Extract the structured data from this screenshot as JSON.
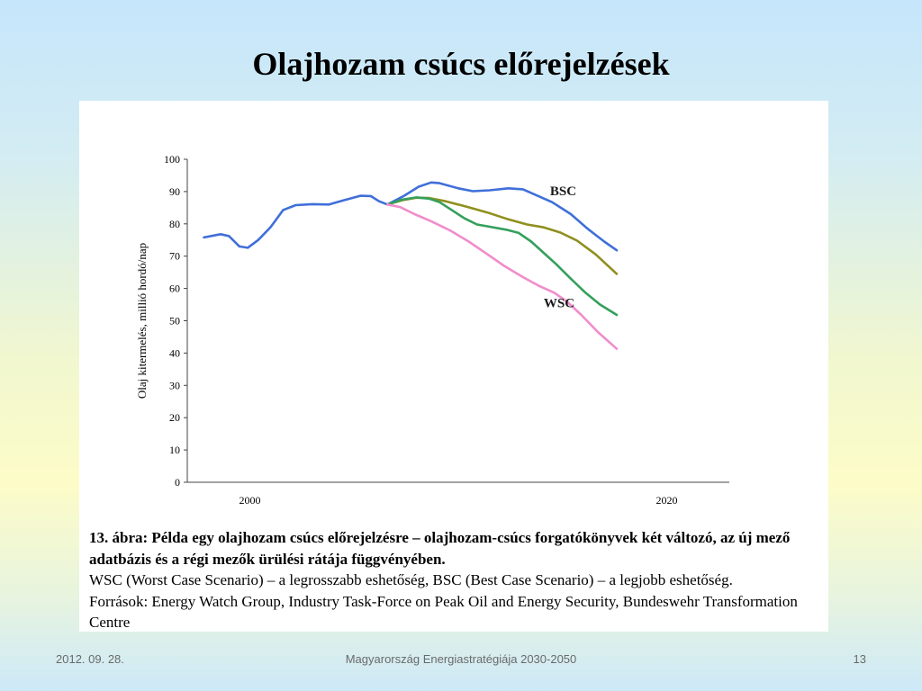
{
  "slide": {
    "title": "Olajhozam csúcs előrejelzések"
  },
  "chart_data": {
    "type": "line",
    "ylabel": "Olaj kitermelés, millió hordó/nap",
    "xlabel": "",
    "ylim": [
      0,
      100
    ],
    "xlim": [
      1997,
      2023
    ],
    "y_ticks": [
      "0",
      "10",
      "20",
      "30",
      "40",
      "50",
      "60",
      "70",
      "80",
      "90",
      "100"
    ],
    "x_ticks": [
      {
        "x": 2000,
        "label": "2000"
      },
      {
        "x": 2020,
        "label": "2020"
      }
    ],
    "grid": false,
    "series": [
      {
        "color": "#3f6fd9",
        "points": [
          [
            1997.8,
            75.8
          ],
          [
            1998.6,
            76.8
          ],
          [
            1999.0,
            76.2
          ],
          [
            1999.5,
            73.0
          ],
          [
            1999.9,
            72.6
          ],
          [
            2000.4,
            75.0
          ],
          [
            2001.0,
            79.0
          ],
          [
            2001.6,
            84.3
          ],
          [
            2002.2,
            85.8
          ],
          [
            2003.0,
            86.1
          ],
          [
            2003.8,
            86.0
          ],
          [
            2004.5,
            87.3
          ],
          [
            2005.3,
            88.7
          ],
          [
            2005.8,
            88.6
          ],
          [
            2006.2,
            87.0
          ],
          [
            2006.6,
            86.0
          ],
          [
            2007.4,
            88.7
          ],
          [
            2008.1,
            91.5
          ],
          [
            2008.7,
            92.8
          ],
          [
            2009.1,
            92.6
          ],
          [
            2010.0,
            91.0
          ],
          [
            2010.7,
            90.1
          ],
          [
            2011.5,
            90.4
          ],
          [
            2012.4,
            91.0
          ],
          [
            2013.1,
            90.7
          ],
          [
            2013.8,
            88.7
          ],
          [
            2014.5,
            86.7
          ],
          [
            2015.4,
            83.0
          ],
          [
            2016.2,
            78.5
          ],
          [
            2017.0,
            74.5
          ],
          [
            2017.6,
            71.8
          ]
        ]
      },
      {
        "color": "#8f8f1e",
        "points": [
          [
            2006.6,
            86.0
          ],
          [
            2007.3,
            87.3
          ],
          [
            2008.0,
            88.1
          ],
          [
            2008.6,
            88.0
          ],
          [
            2009.4,
            87.0
          ],
          [
            2010.4,
            85.3
          ],
          [
            2011.4,
            83.5
          ],
          [
            2012.4,
            81.4
          ],
          [
            2013.3,
            79.8
          ],
          [
            2014.1,
            78.9
          ],
          [
            2014.9,
            77.3
          ],
          [
            2015.7,
            74.8
          ],
          [
            2016.6,
            70.5
          ],
          [
            2017.6,
            64.5
          ]
        ]
      },
      {
        "color": "#34a05c",
        "points": [
          [
            2006.6,
            86.0
          ],
          [
            2007.3,
            87.5
          ],
          [
            2008.0,
            88.2
          ],
          [
            2008.6,
            87.8
          ],
          [
            2009.1,
            86.7
          ],
          [
            2009.7,
            84.2
          ],
          [
            2010.3,
            81.7
          ],
          [
            2010.9,
            79.8
          ],
          [
            2011.6,
            79.0
          ],
          [
            2012.3,
            78.2
          ],
          [
            2012.9,
            77.2
          ],
          [
            2013.5,
            74.5
          ],
          [
            2014.1,
            71.0
          ],
          [
            2014.7,
            67.5
          ],
          [
            2015.4,
            63.0
          ],
          [
            2016.1,
            58.7
          ],
          [
            2016.8,
            55.0
          ],
          [
            2017.6,
            51.8
          ]
        ]
      },
      {
        "color": "#f08dcb",
        "points": [
          [
            2006.6,
            86.0
          ],
          [
            2007.2,
            85.2
          ],
          [
            2007.9,
            83.0
          ],
          [
            2008.7,
            80.8
          ],
          [
            2009.6,
            78.0
          ],
          [
            2010.5,
            74.5
          ],
          [
            2011.3,
            71.0
          ],
          [
            2012.2,
            67.0
          ],
          [
            2013.1,
            63.5
          ],
          [
            2013.9,
            60.7
          ],
          [
            2014.6,
            58.7
          ],
          [
            2015.2,
            56.0
          ],
          [
            2015.9,
            51.8
          ],
          [
            2016.7,
            46.5
          ],
          [
            2017.6,
            41.3
          ]
        ]
      }
    ],
    "annotations": [
      {
        "text": "BSC",
        "x": 2014.4,
        "y": 88.8
      },
      {
        "text": "WSC",
        "x": 2014.1,
        "y": 54.2
      }
    ]
  },
  "caption": {
    "bold": "13. ábra: Példa egy olajhozam csúcs előrejelzésre – olajhozam-csúcs forgatókönyvek két változó, az új mező adatbázis és a régi mezők ürülési rátája függvényében.",
    "line2": "WSC (Worst Case Scenario) – a legrosszabb eshetőség, BSC (Best Case Scenario) – a legjobb eshetőség.",
    "line3": "Források: Energy Watch Group, Industry Task-Force on Peak Oil and Energy Security, Bundeswehr Transformation Centre"
  },
  "footer": {
    "date": "2012. 09. 28.",
    "center": "Magyarország Energiastratégiája 2030-2050",
    "page": "13"
  }
}
